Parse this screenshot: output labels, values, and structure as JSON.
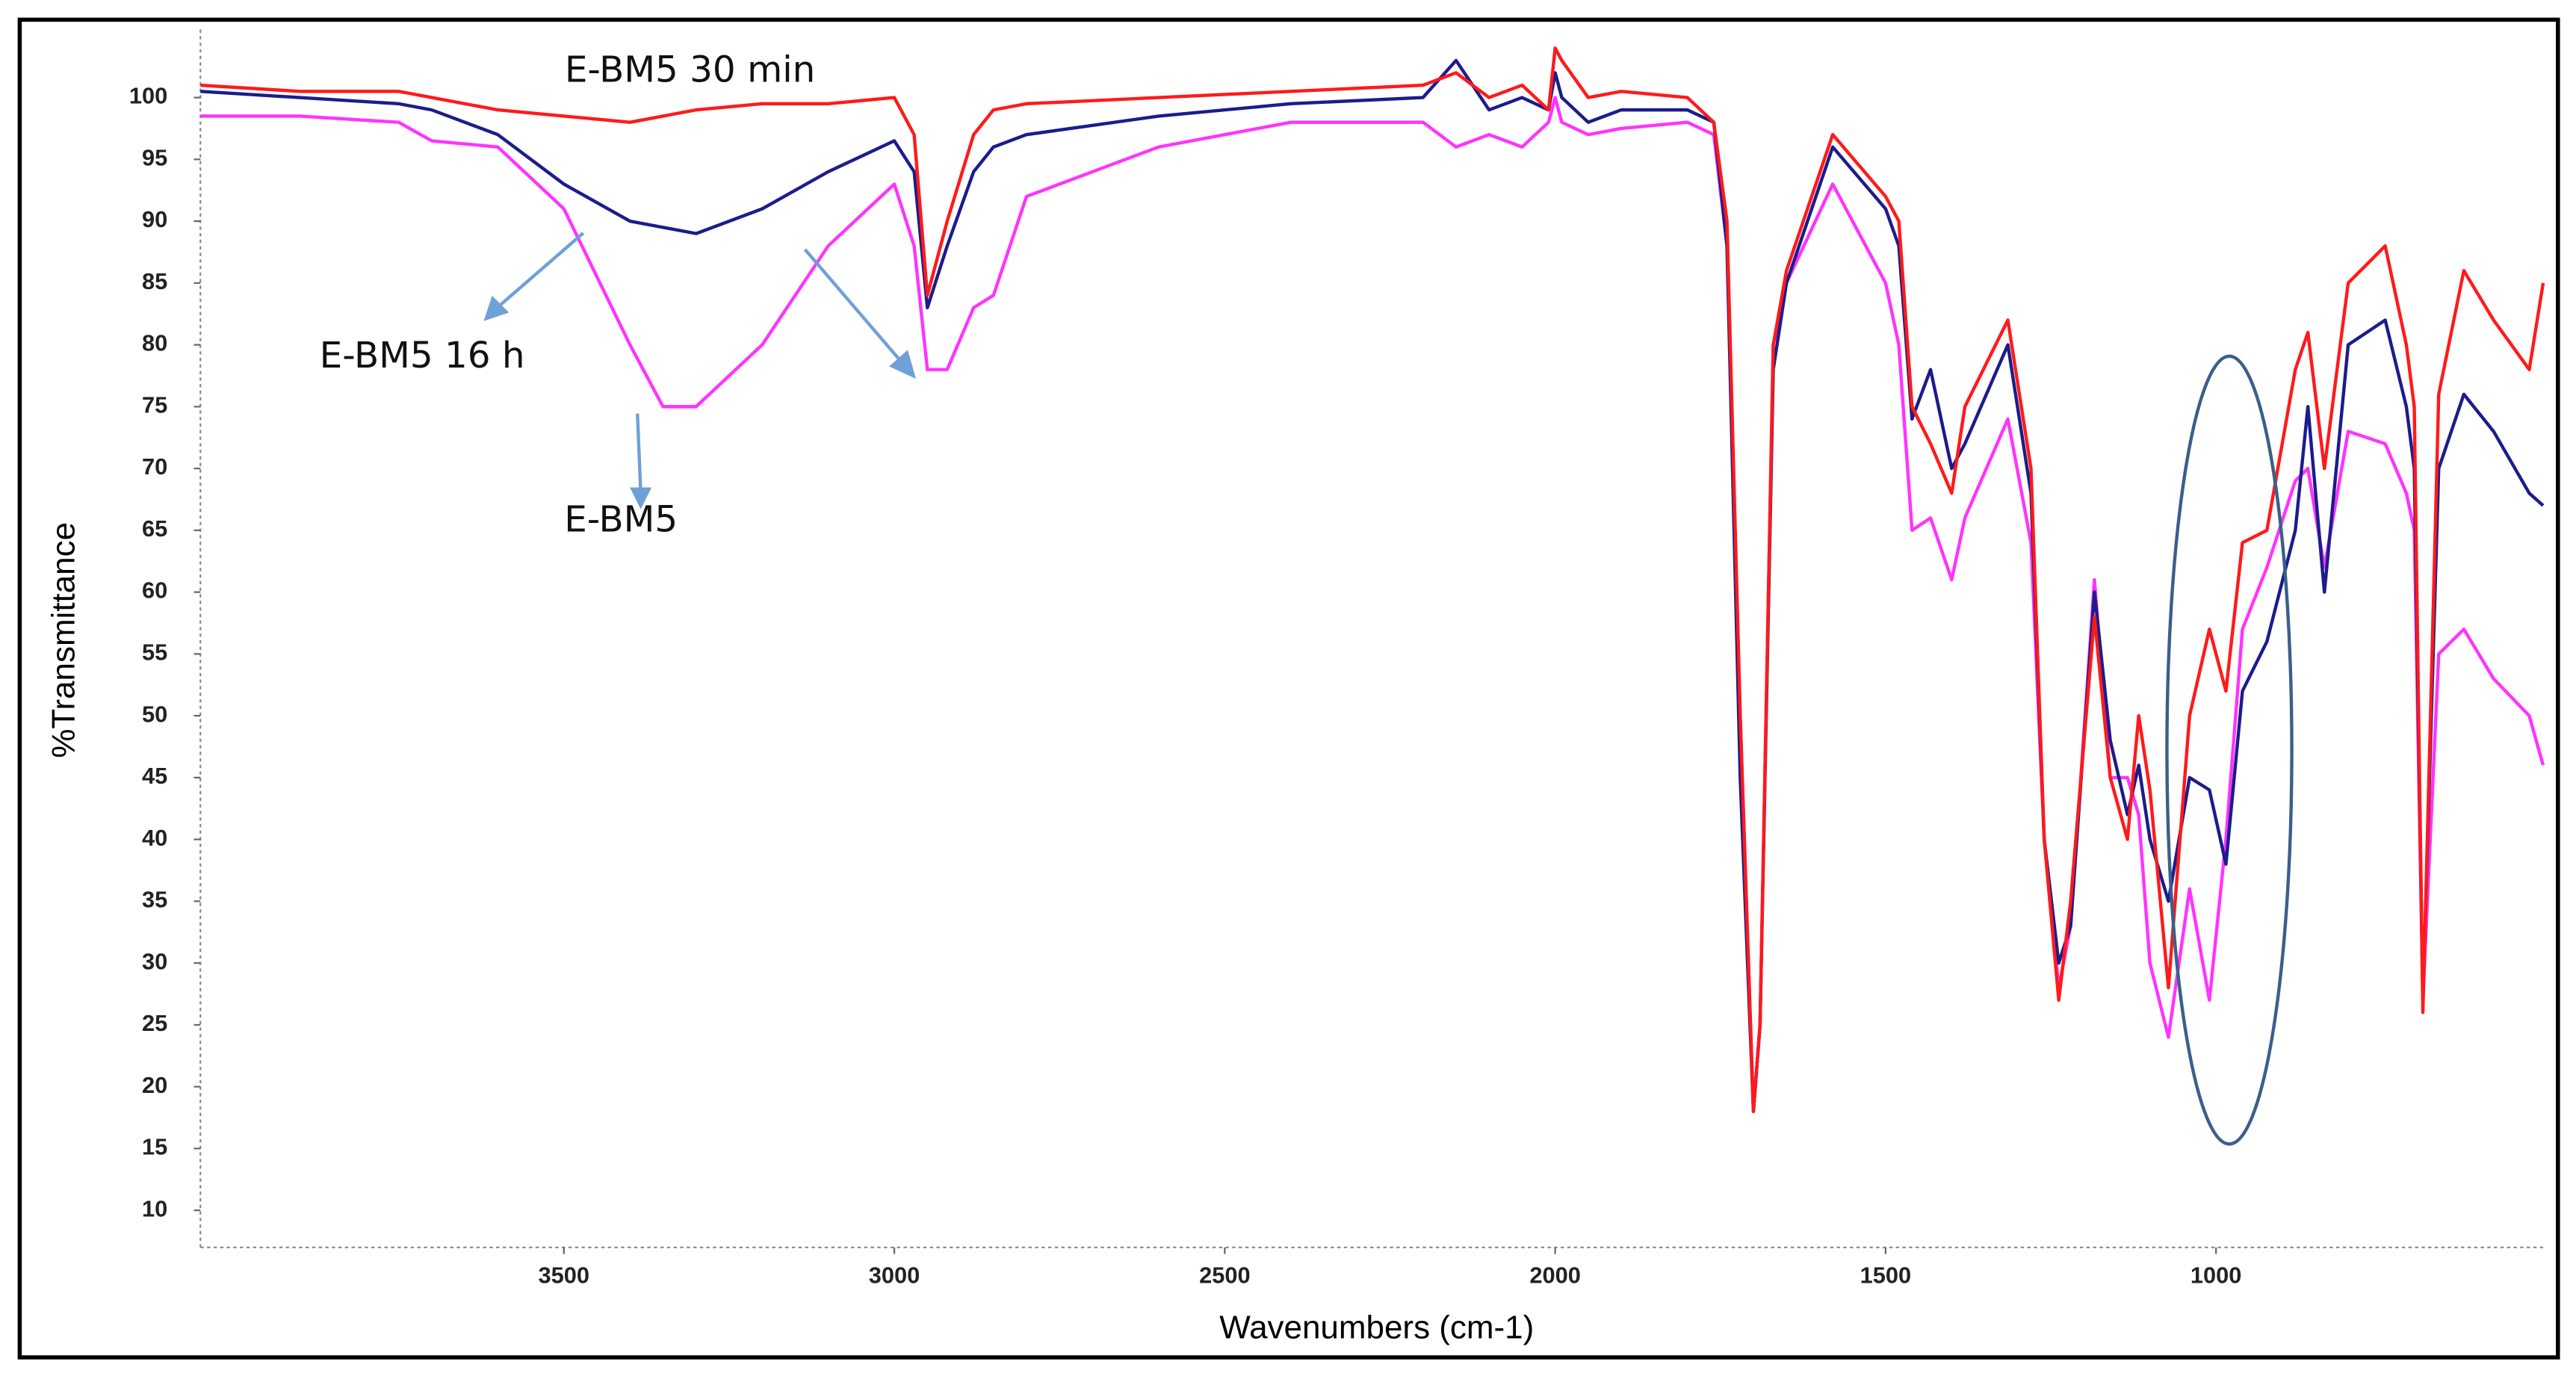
{
  "chart_data": {
    "type": "line",
    "xlabel": "Wavenumbers (cm-1)",
    "ylabel": "%Transmittance",
    "annotations": [
      "E-BM5 30 min",
      "E-BM5 16 h",
      "E-BM5"
    ],
    "xlim": [
      4050,
      505
    ],
    "xticks": [
      3500,
      3000,
      2500,
      2000,
      1500,
      1000
    ],
    "ylim": [
      7,
      105.5
    ],
    "yticks": [
      10,
      15,
      20,
      25,
      30,
      35,
      40,
      45,
      50,
      55,
      60,
      65,
      70,
      75,
      80,
      85,
      90,
      95,
      100
    ],
    "x": [
      4050,
      3900,
      3750,
      3700,
      3600,
      3500,
      3400,
      3350,
      3300,
      3200,
      3100,
      3000,
      2970,
      2950,
      2920,
      2880,
      2850,
      2800,
      2600,
      2400,
      2200,
      2150,
      2100,
      2050,
      2010,
      2000,
      1990,
      1950,
      1900,
      1800,
      1760,
      1740,
      1720,
      1700,
      1690,
      1670,
      1650,
      1580,
      1500,
      1480,
      1460,
      1432,
      1400,
      1380,
      1315,
      1280,
      1260,
      1238,
      1220,
      1184,
      1160,
      1134,
      1117,
      1100,
      1072,
      1040,
      1010,
      985,
      960,
      923,
      880,
      861,
      836,
      800,
      744,
      712,
      700,
      687,
      663,
      625,
      580,
      526,
      505
    ],
    "series": [
      {
        "name": "E-BM5 30 min",
        "color": "#ff1a1a",
        "values": [
          101,
          100.5,
          100.5,
          100,
          99,
          98.5,
          98,
          98.5,
          99,
          99.5,
          99.5,
          100,
          97,
          84,
          90,
          97,
          99,
          99.5,
          100,
          100.5,
          101,
          102,
          100,
          101,
          99,
          104,
          103,
          100,
          100.5,
          100,
          98,
          90,
          50,
          18,
          25,
          80,
          86,
          97,
          92,
          90,
          75,
          72,
          68,
          75,
          82,
          70,
          40,
          27,
          35,
          58,
          45,
          40,
          50,
          44,
          28,
          50,
          57,
          52,
          64,
          65,
          78,
          81,
          70,
          85,
          88,
          80,
          75,
          26,
          76,
          86,
          82,
          78,
          85
        ]
      },
      {
        "name": "E-BM5 16 h",
        "color": "#1c1c8c",
        "values": [
          100.5,
          100,
          99.5,
          99,
          97,
          93,
          90,
          89.5,
          89,
          91,
          94,
          96.5,
          94,
          83,
          88,
          94,
          96,
          97,
          98.5,
          99.5,
          100,
          103,
          99,
          100,
          99,
          102,
          100,
          98,
          99,
          99,
          98,
          88,
          45,
          18,
          25,
          78,
          85,
          96,
          91,
          88,
          74,
          78,
          70,
          72,
          80,
          68,
          40,
          30,
          33,
          60,
          48,
          42,
          46,
          40,
          35,
          45,
          44,
          38,
          52,
          56,
          65,
          75,
          60,
          80,
          82,
          75,
          70,
          27,
          70,
          76,
          73,
          68,
          67
        ]
      },
      {
        "name": "E-BM5",
        "color": "#ff33ff",
        "values": [
          98.5,
          98.5,
          98,
          96.5,
          96,
          91,
          80,
          75,
          75,
          80,
          88,
          93,
          88,
          78,
          78,
          83,
          84,
          92,
          96,
          98,
          98,
          96,
          97,
          96,
          98,
          100,
          98,
          97,
          97.5,
          98,
          97,
          88,
          50,
          18,
          25,
          80,
          85,
          93,
          85,
          80,
          65,
          66,
          61,
          66,
          74,
          64,
          40,
          28,
          33,
          61,
          45,
          45,
          42,
          30,
          24,
          36,
          27,
          40,
          57,
          62,
          69,
          70,
          62,
          73,
          72,
          68,
          65,
          27,
          55,
          57,
          53,
          50,
          46
        ]
      }
    ]
  }
}
